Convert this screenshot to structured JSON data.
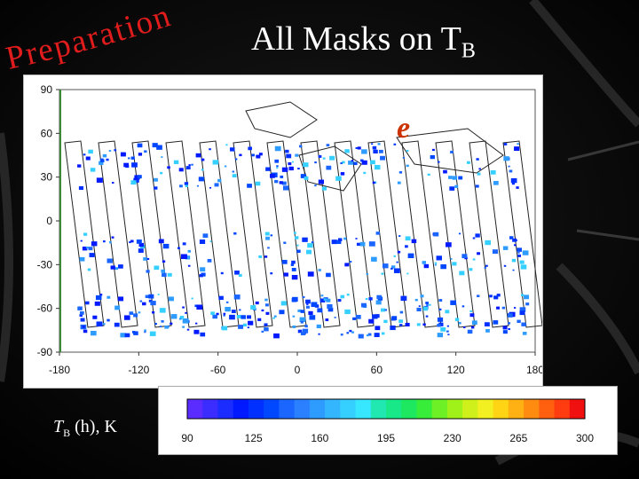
{
  "slide": {
    "arc_title": "Preparation",
    "title_main": "All Masks on T",
    "title_sub": "B",
    "panel_letter": "e",
    "unit_T": "T",
    "unit_sub": "B",
    "unit_rest": " (h), K",
    "unit_h": "h"
  },
  "map": {
    "y_ticks": [
      "90",
      "60",
      "30",
      "0",
      "-30",
      "-60",
      "-90"
    ],
    "x_ticks": [
      "-180",
      "-120",
      "-60",
      "0",
      "60",
      "120",
      "180"
    ]
  },
  "colorbar": {
    "ticks": [
      "90",
      "125",
      "160",
      "195",
      "230",
      "265",
      "300"
    ],
    "colors": [
      "#5b2cff",
      "#3b2cff",
      "#1a2cff",
      "#0019ff",
      "#0030ff",
      "#0048ff",
      "#1a66ff",
      "#2a80ff",
      "#2e9cff",
      "#34b6ff",
      "#35d0ff",
      "#37e6ff",
      "#20e8b0",
      "#18e888",
      "#1ee860",
      "#38ec3a",
      "#6ef026",
      "#a0f01a",
      "#d0f01c",
      "#f2f020",
      "#ffd414",
      "#ffb012",
      "#ff8c10",
      "#ff6010",
      "#ff3c10",
      "#f01010"
    ]
  }
}
